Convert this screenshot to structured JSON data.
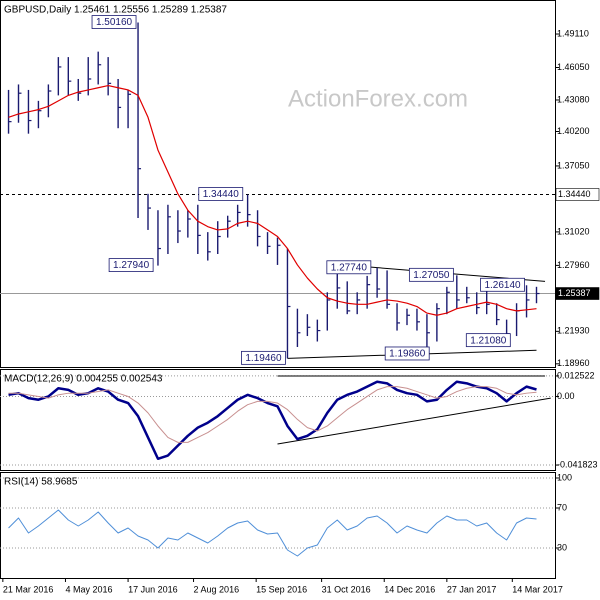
{
  "watermark": "ActionForex.com",
  "chart_data": [
    {
      "type": "ohlc",
      "title": "GBPUSD,Daily  1.25461 1.25556 1.25289 1.25387",
      "color": "#1a1a70",
      "x": [
        "2016-03-25",
        "2016-04-01",
        "2016-04-08",
        "2016-04-15",
        "2016-04-22",
        "2016-04-29",
        "2016-05-06",
        "2016-05-13",
        "2016-05-20",
        "2016-05-27",
        "2016-06-03",
        "2016-06-10",
        "2016-06-17",
        "2016-06-24",
        "2016-07-01",
        "2016-07-08",
        "2016-07-15",
        "2016-07-22",
        "2016-07-29",
        "2016-08-05",
        "2016-08-12",
        "2016-08-19",
        "2016-08-26",
        "2016-09-02",
        "2016-09-09",
        "2016-09-16",
        "2016-09-23",
        "2016-09-30",
        "2016-10-07",
        "2016-10-14",
        "2016-10-21",
        "2016-10-28",
        "2016-11-04",
        "2016-11-11",
        "2016-11-18",
        "2016-11-25",
        "2016-12-02",
        "2016-12-09",
        "2016-12-16",
        "2016-12-23",
        "2016-12-30",
        "2017-01-06",
        "2017-01-13",
        "2017-01-20",
        "2017-01-27",
        "2017-02-03",
        "2017-02-10",
        "2017-02-17",
        "2017-02-24",
        "2017-03-03",
        "2017-03-10",
        "2017-03-17",
        "2017-03-24",
        "2017-03-31"
      ],
      "high": [
        1.44,
        1.445,
        1.44,
        1.43,
        1.445,
        1.47,
        1.47,
        1.45,
        1.47,
        1.475,
        1.47,
        1.45,
        1.44,
        1.5016,
        1.345,
        1.33,
        1.335,
        1.33,
        1.33,
        1.335,
        1.31,
        1.32,
        1.325,
        1.335,
        1.3444,
        1.33,
        1.31,
        1.305,
        1.295,
        1.24,
        1.235,
        1.23,
        1.255,
        1.2774,
        1.265,
        1.255,
        1.27,
        1.2774,
        1.275,
        1.245,
        1.24,
        1.24,
        1.235,
        1.245,
        1.26,
        1.2705,
        1.26,
        1.255,
        1.26,
        1.245,
        1.23,
        1.245,
        1.2614,
        1.26
      ],
      "low": [
        1.4,
        1.41,
        1.4,
        1.405,
        1.415,
        1.435,
        1.435,
        1.43,
        1.435,
        1.445,
        1.435,
        1.405,
        1.405,
        1.3229,
        1.312,
        1.2794,
        1.29,
        1.3,
        1.305,
        1.29,
        1.284,
        1.29,
        1.305,
        1.315,
        1.315,
        1.297,
        1.29,
        1.28,
        1.1946,
        1.205,
        1.215,
        1.21,
        1.22,
        1.24,
        1.235,
        1.235,
        1.24,
        1.25,
        1.24,
        1.22,
        1.225,
        1.22,
        1.1986,
        1.21,
        1.235,
        1.24,
        1.245,
        1.235,
        1.235,
        1.225,
        1.2108,
        1.215,
        1.232,
        1.245
      ],
      "close": [
        1.411,
        1.437,
        1.412,
        1.421,
        1.439,
        1.461,
        1.448,
        1.437,
        1.45,
        1.463,
        1.446,
        1.424,
        1.436,
        1.368,
        1.332,
        1.295,
        1.324,
        1.311,
        1.322,
        1.307,
        1.292,
        1.306,
        1.32,
        1.328,
        1.326,
        1.306,
        1.297,
        1.298,
        1.242,
        1.218,
        1.223,
        1.22,
        1.248,
        1.259,
        1.238,
        1.248,
        1.262,
        1.258,
        1.244,
        1.227,
        1.234,
        1.228,
        1.218,
        1.24,
        1.255,
        1.248,
        1.25,
        1.241,
        1.244,
        1.23,
        1.217,
        1.238,
        1.248,
        1.25387
      ],
      "series": [
        {
          "color": "#e00000",
          "values": [
            1.415,
            1.418,
            1.42,
            1.422,
            1.425,
            1.43,
            1.435,
            1.438,
            1.44,
            1.442,
            1.444,
            1.442,
            1.44,
            1.435,
            1.415,
            1.385,
            1.365,
            1.345,
            1.33,
            1.32,
            1.315,
            1.312,
            1.313,
            1.318,
            1.32,
            1.318,
            1.312,
            1.306,
            1.295,
            1.28,
            1.268,
            1.258,
            1.25,
            1.247,
            1.245,
            1.244,
            1.244,
            1.246,
            1.248,
            1.247,
            1.245,
            1.242,
            1.236,
            1.234,
            1.236,
            1.24,
            1.242,
            1.244,
            1.246,
            1.244,
            1.24,
            1.238,
            1.239,
            1.24
          ]
        }
      ],
      "xlim": [
        "2016-03-19",
        "2017-04-13"
      ],
      "ylim": [
        1.1867,
        1.5222
      ],
      "yticks": [
        {
          "value": 1.4911,
          "label": "1.49110"
        },
        {
          "value": 1.4605,
          "label": "1.46050"
        },
        {
          "value": 1.4308,
          "label": "1.43080"
        },
        {
          "value": 1.402,
          "label": "1.40200"
        },
        {
          "value": 1.3705,
          "label": "1.37050"
        },
        {
          "value": 1.3102,
          "label": "1.31020"
        },
        {
          "value": 1.2796,
          "label": "1.27960"
        },
        {
          "value": 1.2193,
          "label": "1.21930"
        },
        {
          "value": 1.1896,
          "label": "1.18960"
        }
      ],
      "grid": false,
      "hlines": [
        {
          "value": 1.3444,
          "label": "1.34440",
          "style": "dashed"
        },
        {
          "value": 1.25387,
          "label": "1.25387",
          "style": "solid"
        }
      ],
      "annotations": [
        {
          "text": "1.50160",
          "x": "2016-06-24",
          "y": 1.5016
        },
        {
          "text": "1.27940",
          "x": "2016-07-06",
          "y": 1.2794
        },
        {
          "text": "1.34440",
          "x": "2016-09-07",
          "y": 1.3444
        },
        {
          "text": "1.19460",
          "x": "2016-10-07",
          "y": 1.1946
        },
        {
          "text": "1.27740",
          "x": "2016-12-06",
          "y": 1.2774
        },
        {
          "text": "1.19860",
          "x": "2017-01-16",
          "y": 1.1986
        },
        {
          "text": "1.27050",
          "x": "2017-02-02",
          "y": 1.2705
        },
        {
          "text": "1.21080",
          "x": "2017-03-14",
          "y": 1.2108
        },
        {
          "text": "1.26140",
          "x": "2017-03-24",
          "y": 1.2614
        }
      ],
      "trendlines": [
        {
          "x": [
            "2016-10-07",
            "2017-03-31"
          ],
          "y": [
            1.1946,
            1.202
          ]
        },
        {
          "x": [
            "2016-11-25",
            "2017-04-06"
          ],
          "y": [
            1.279,
            1.265
          ]
        }
      ]
    },
    {
      "type": "line",
      "title": "MACD(12,26,9) 0.004255 0.002543",
      "x": [
        "2016-03-25",
        "2016-04-01",
        "2016-04-08",
        "2016-04-15",
        "2016-04-22",
        "2016-04-29",
        "2016-05-06",
        "2016-05-13",
        "2016-05-20",
        "2016-05-27",
        "2016-06-03",
        "2016-06-10",
        "2016-06-17",
        "2016-06-24",
        "2016-07-01",
        "2016-07-08",
        "2016-07-15",
        "2016-07-22",
        "2016-07-29",
        "2016-08-05",
        "2016-08-12",
        "2016-08-19",
        "2016-08-26",
        "2016-09-02",
        "2016-09-09",
        "2016-09-16",
        "2016-09-23",
        "2016-09-30",
        "2016-10-07",
        "2016-10-14",
        "2016-10-21",
        "2016-10-28",
        "2016-11-04",
        "2016-11-11",
        "2016-11-18",
        "2016-11-25",
        "2016-12-02",
        "2016-12-09",
        "2016-12-16",
        "2016-12-23",
        "2016-12-30",
        "2017-01-06",
        "2017-01-13",
        "2017-01-20",
        "2017-01-27",
        "2017-02-03",
        "2017-02-10",
        "2017-02-17",
        "2017-02-24",
        "2017-03-03",
        "2017-03-10",
        "2017-03-17",
        "2017-03-24",
        "2017-03-31"
      ],
      "series": [
        {
          "color": "#00008b",
          "width": 2.5,
          "values": [
            0.001,
            0.002,
            -0.001,
            -0.002,
            0.0,
            0.005,
            0.004,
            0.001,
            0.002,
            0.005,
            0.003,
            -0.002,
            -0.004,
            -0.012,
            -0.025,
            -0.038,
            -0.036,
            -0.03,
            -0.024,
            -0.019,
            -0.016,
            -0.012,
            -0.007,
            -0.002,
            0.001,
            -0.001,
            -0.004,
            -0.006,
            -0.018,
            -0.026,
            -0.024,
            -0.02,
            -0.01,
            -0.002,
            0.001,
            0.003,
            0.006,
            0.009,
            0.008,
            0.004,
            0.002,
            0.001,
            -0.003,
            -0.002,
            0.004,
            0.009,
            0.008,
            0.006,
            0.005,
            0.002,
            -0.003,
            0.002,
            0.006,
            0.004255
          ]
        },
        {
          "color": "#c89090",
          "width": 1,
          "values": [
            0.002,
            0.002,
            0.001,
            0.0,
            -0.001,
            0.001,
            0.002,
            0.002,
            0.002,
            0.003,
            0.004,
            0.002,
            0.0,
            -0.004,
            -0.01,
            -0.018,
            -0.025,
            -0.028,
            -0.028,
            -0.025,
            -0.022,
            -0.018,
            -0.014,
            -0.009,
            -0.005,
            -0.003,
            -0.003,
            -0.004,
            -0.008,
            -0.014,
            -0.019,
            -0.021,
            -0.018,
            -0.013,
            -0.008,
            -0.004,
            0.0,
            0.004,
            0.006,
            0.006,
            0.005,
            0.003,
            0.001,
            -0.001,
            0.0,
            0.003,
            0.005,
            0.006,
            0.006,
            0.005,
            0.002,
            0.001,
            0.002,
            0.002543
          ]
        }
      ],
      "xlim": [
        "2016-03-19",
        "2017-04-13"
      ],
      "ylim": [
        -0.04484,
        0.01675
      ],
      "yticks": [
        0.012522,
        {
          "value": 0,
          "label": "0.00"
        },
        -0.041823
      ],
      "grid": true,
      "trendlines": [
        {
          "x": [
            "2016-09-30",
            "2017-04-06"
          ],
          "y": [
            0.0125,
            0.0125
          ]
        },
        {
          "x": [
            "2016-09-30",
            "2017-04-10"
          ],
          "y": [
            -0.029,
            -0.001
          ]
        }
      ]
    },
    {
      "type": "line",
      "title": "RSI(14) 58.9685",
      "x": [
        "2016-03-25",
        "2016-04-01",
        "2016-04-08",
        "2016-04-15",
        "2016-04-22",
        "2016-04-29",
        "2016-05-06",
        "2016-05-13",
        "2016-05-20",
        "2016-05-27",
        "2016-06-03",
        "2016-06-10",
        "2016-06-17",
        "2016-06-24",
        "2016-07-01",
        "2016-07-08",
        "2016-07-15",
        "2016-07-22",
        "2016-07-29",
        "2016-08-05",
        "2016-08-12",
        "2016-08-19",
        "2016-08-26",
        "2016-09-02",
        "2016-09-09",
        "2016-09-16",
        "2016-09-23",
        "2016-09-30",
        "2016-10-07",
        "2016-10-14",
        "2016-10-21",
        "2016-10-28",
        "2016-11-04",
        "2016-11-11",
        "2016-11-18",
        "2016-11-25",
        "2016-12-02",
        "2016-12-09",
        "2016-12-16",
        "2016-12-23",
        "2016-12-30",
        "2017-01-06",
        "2017-01-13",
        "2017-01-20",
        "2017-01-27",
        "2017-02-03",
        "2017-02-10",
        "2017-02-17",
        "2017-02-24",
        "2017-03-03",
        "2017-03-10",
        "2017-03-17",
        "2017-03-24",
        "2017-03-31"
      ],
      "series": [
        {
          "color": "#4f8fd8",
          "width": 1,
          "values": [
            50,
            60,
            45,
            52,
            60,
            68,
            58,
            52,
            58,
            66,
            55,
            45,
            50,
            42,
            38,
            30,
            40,
            38,
            45,
            40,
            35,
            42,
            50,
            55,
            57,
            48,
            44,
            45,
            28,
            22,
            30,
            33,
            50,
            58,
            48,
            52,
            60,
            62,
            55,
            45,
            52,
            48,
            45,
            55,
            62,
            58,
            58,
            52,
            55,
            45,
            38,
            55,
            60,
            58.9685
          ]
        }
      ],
      "xlim": [
        "2016-03-19",
        "2017-04-13"
      ],
      "ylim": [
        0,
        106
      ],
      "yticks": [
        100,
        70,
        30
      ],
      "grid": true,
      "xticks": [
        {
          "value": "2016-03-21",
          "label": "21 Mar 2016"
        },
        {
          "value": "2016-05-04",
          "label": "4 May 2016"
        },
        {
          "value": "2016-06-17",
          "label": "17 Jun 2016"
        },
        {
          "value": "2016-08-02",
          "label": "2 Aug 2016"
        },
        {
          "value": "2016-09-15",
          "label": "15 Sep 2016"
        },
        {
          "value": "2016-10-31",
          "label": "31 Oct 2016"
        },
        {
          "value": "2016-12-14",
          "label": "14 Dec 2016"
        },
        {
          "value": "2017-01-27",
          "label": "27 Jan 2017"
        },
        {
          "value": "2017-03-14",
          "label": "14 Mar 2017"
        }
      ]
    }
  ]
}
